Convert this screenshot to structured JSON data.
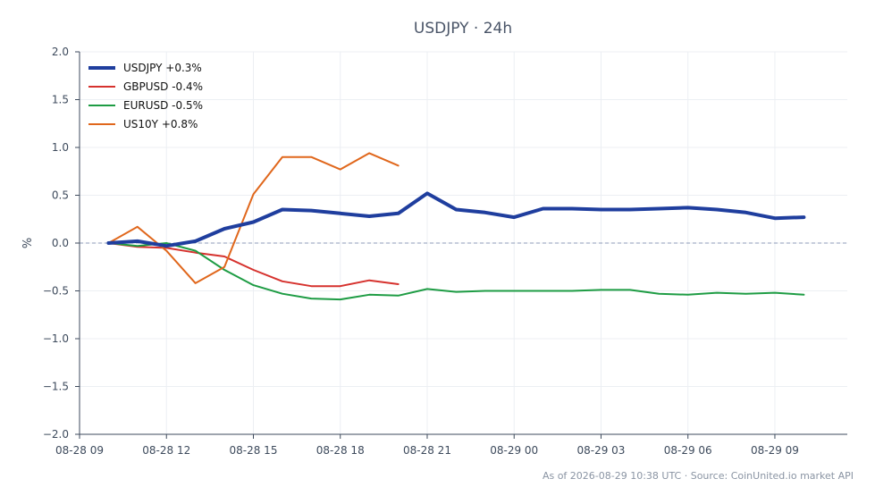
{
  "chart_data": {
    "type": "line",
    "title": "USDJPY · 24h",
    "xlabel": "",
    "ylabel": "%",
    "ylim": [
      -2.0,
      2.0
    ],
    "yticks": [
      2.0,
      1.5,
      1.0,
      0.5,
      0.0,
      -0.5,
      -1.0,
      -1.5,
      -2.0
    ],
    "ytick_labels": [
      "2.0",
      "1.5",
      "1.0",
      "0.5",
      "0.0",
      "−0.5",
      "−1.0",
      "−1.5",
      "−2.0"
    ],
    "xlim_hours": [
      0,
      26.5
    ],
    "xticks": [
      {
        "hour": 0,
        "label": "08-28 09"
      },
      {
        "hour": 3,
        "label": "08-28 12"
      },
      {
        "hour": 6,
        "label": "08-28 15"
      },
      {
        "hour": 9,
        "label": "08-28 18"
      },
      {
        "hour": 12,
        "label": "08-28 21"
      },
      {
        "hour": 15,
        "label": "08-29 00"
      },
      {
        "hour": 18,
        "label": "08-29 03"
      },
      {
        "hour": 21,
        "label": "08-29 06"
      },
      {
        "hour": 24,
        "label": "08-29 09"
      }
    ],
    "grid": true,
    "zero_line": true,
    "legend_position": "top-left",
    "series": [
      {
        "name": "USDJPY +0.3%",
        "color": "#1f3e9e",
        "width": 4,
        "x": [
          1,
          2,
          3,
          4,
          5,
          6,
          7,
          8,
          9,
          10,
          11,
          12,
          13,
          14,
          15,
          16,
          17,
          18,
          19,
          20,
          21,
          22,
          23,
          24,
          25
        ],
        "values": [
          0.0,
          0.02,
          -0.03,
          0.02,
          0.15,
          0.22,
          0.35,
          0.34,
          0.31,
          0.28,
          0.31,
          0.52,
          0.35,
          0.32,
          0.27,
          0.36,
          0.36,
          0.35,
          0.35,
          0.36,
          0.37,
          0.35,
          0.32,
          0.26,
          0.27
        ]
      },
      {
        "name": "GBPUSD -0.4%",
        "color": "#d6322e",
        "width": 2,
        "x": [
          1,
          2,
          3,
          4,
          5,
          6,
          7,
          8,
          9,
          10,
          11
        ],
        "values": [
          0.0,
          -0.04,
          -0.05,
          -0.1,
          -0.14,
          -0.28,
          -0.4,
          -0.45,
          -0.45,
          -0.39,
          -0.43
        ]
      },
      {
        "name": "EURUSD -0.5%",
        "color": "#1e9c44",
        "width": 2,
        "x": [
          1,
          2,
          3,
          4,
          5,
          6,
          7,
          8,
          9,
          10,
          11,
          12,
          13,
          14,
          15,
          16,
          17,
          18,
          19,
          20,
          21,
          22,
          23,
          24,
          25
        ],
        "values": [
          0.0,
          -0.03,
          0.0,
          -0.08,
          -0.28,
          -0.44,
          -0.53,
          -0.58,
          -0.59,
          -0.54,
          -0.55,
          -0.48,
          -0.51,
          -0.5,
          -0.5,
          -0.5,
          -0.5,
          -0.49,
          -0.49,
          -0.53,
          -0.54,
          -0.52,
          -0.53,
          -0.52,
          -0.54
        ]
      },
      {
        "name": "US10Y +0.8%",
        "color": "#e0671c",
        "width": 2,
        "x": [
          1,
          2,
          3,
          4,
          5,
          6,
          7,
          8,
          9,
          10,
          11
        ],
        "values": [
          0.0,
          0.17,
          -0.08,
          -0.42,
          -0.25,
          0.51,
          0.9,
          0.9,
          0.77,
          0.94,
          0.81
        ]
      }
    ]
  },
  "footer": "As of 2026-08-29 10:38 UTC · Source: CoinUnited.io market API"
}
